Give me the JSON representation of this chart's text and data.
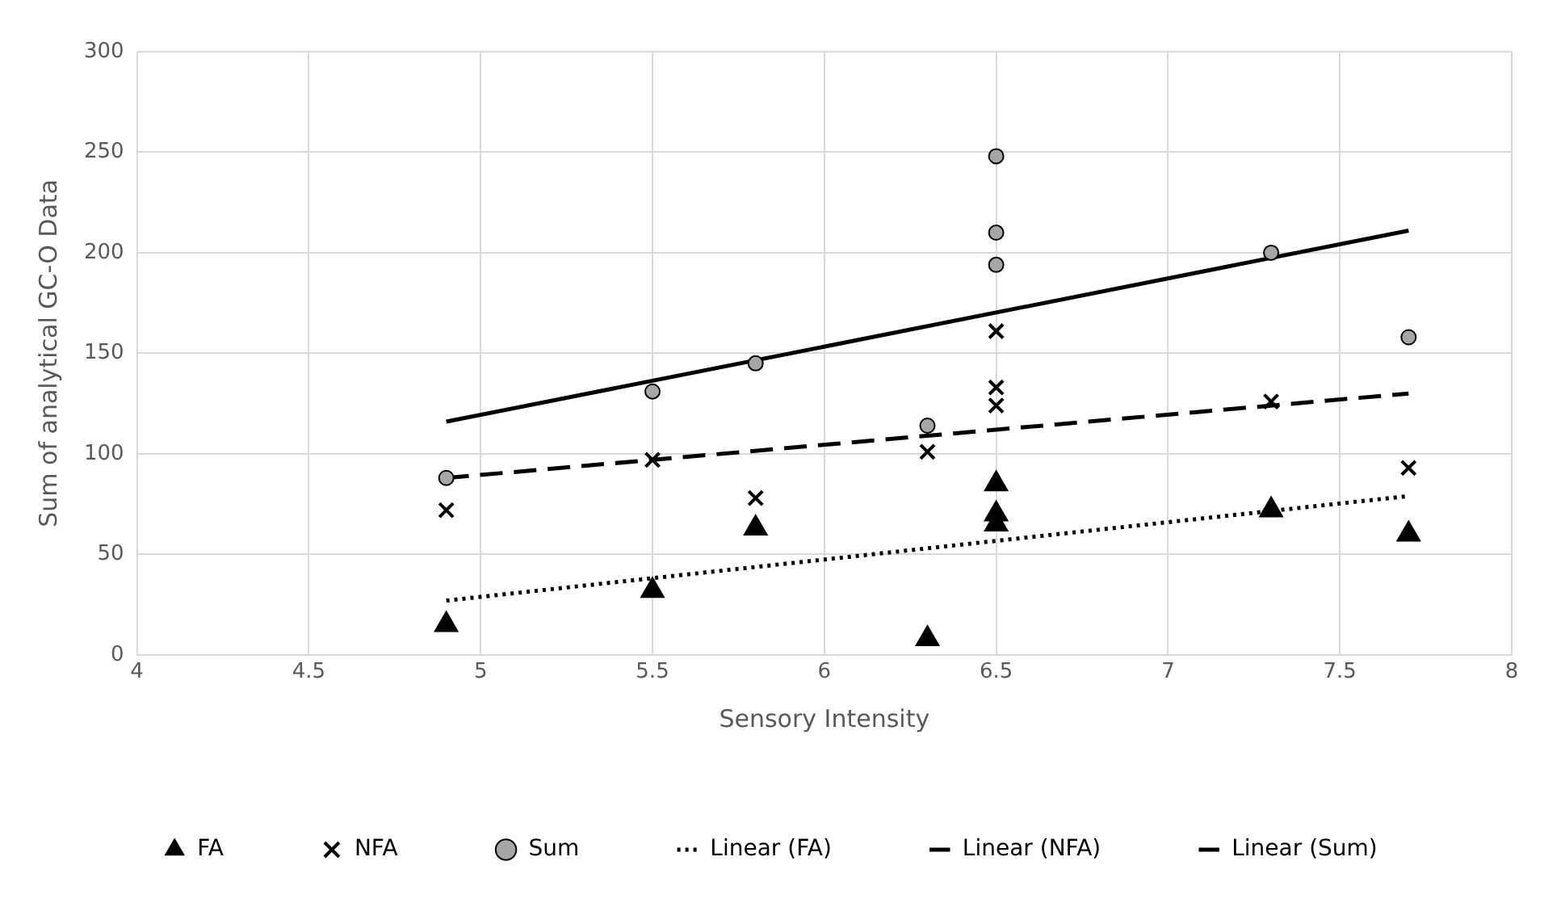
{
  "chart_data": {
    "type": "scatter",
    "xlabel": "Sensory Intensity",
    "ylabel": "Sum of analytical GC-O Data",
    "xlim": [
      4,
      8
    ],
    "xticks": [
      4,
      4.5,
      5,
      5.5,
      6,
      6.5,
      7,
      7.5,
      8
    ],
    "ylim": [
      0,
      300
    ],
    "yticks": [
      0,
      50,
      100,
      150,
      200,
      250,
      300
    ],
    "grid": true,
    "legend": "bottom",
    "series": [
      {
        "name": "FA",
        "marker": "triangle",
        "color": "#000000",
        "x": [
          4.9,
          5.5,
          5.8,
          6.3,
          6.5,
          6.5,
          6.5,
          7.3,
          7.7
        ],
        "values": [
          15,
          32,
          63,
          8,
          85,
          70,
          65,
          72,
          60
        ]
      },
      {
        "name": "NFA",
        "marker": "cross",
        "color": "#000000",
        "x": [
          4.9,
          5.5,
          5.8,
          6.3,
          6.5,
          6.5,
          6.5,
          7.3,
          7.7
        ],
        "values": [
          72,
          97,
          78,
          101,
          161,
          133,
          124,
          126,
          93
        ]
      },
      {
        "name": "Sum",
        "marker": "circle",
        "color": "#a6a6a6",
        "x": [
          4.9,
          5.5,
          5.8,
          6.3,
          6.5,
          6.5,
          6.5,
          7.3,
          7.7
        ],
        "values": [
          88,
          131,
          145,
          114,
          248,
          210,
          194,
          200,
          158
        ]
      },
      {
        "name": "Linear (FA)",
        "type": "line",
        "marker": "none",
        "line_style": "dotted",
        "color": "#000000",
        "x": [
          4.9,
          7.7
        ],
        "values": [
          27,
          79
        ]
      },
      {
        "name": "Linear (NFA)",
        "type": "line",
        "marker": "none",
        "line_style": "dashed",
        "color": "#000000",
        "x": [
          4.9,
          7.7
        ],
        "values": [
          88,
          130
        ]
      },
      {
        "name": "Linear (Sum)",
        "type": "line",
        "marker": "none",
        "line_style": "solid",
        "color": "#000000",
        "x": [
          4.9,
          7.7
        ],
        "values": [
          116,
          211
        ]
      }
    ]
  }
}
